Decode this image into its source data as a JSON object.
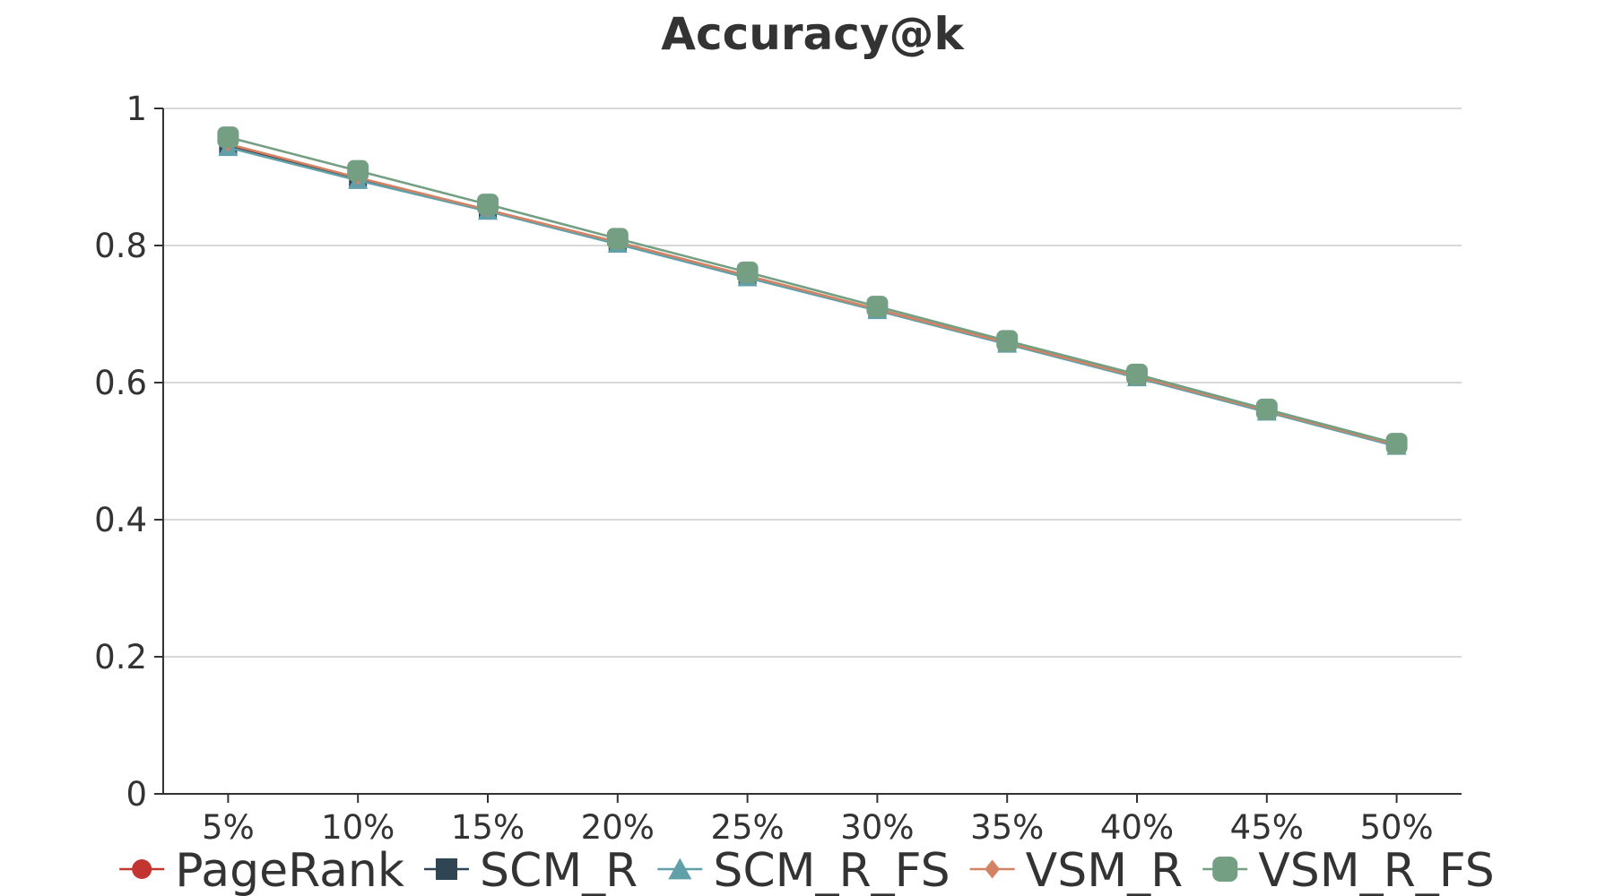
{
  "chart_data": {
    "type": "line",
    "title": "Accuracy@k",
    "xlabel": "",
    "ylabel": "",
    "x": [
      "5%",
      "10%",
      "15%",
      "20%",
      "25%",
      "30%",
      "35%",
      "40%",
      "45%",
      "50%"
    ],
    "ylim": [
      0,
      1
    ],
    "yticks": [
      0,
      0.2,
      0.4,
      0.6,
      0.8,
      1
    ],
    "ytick_labels": [
      "0",
      "0.2",
      "0.4",
      "0.6",
      "0.8",
      "1"
    ],
    "grid": true,
    "legend_position": "bottom",
    "series": [
      {
        "name": "PageRank",
        "marker": "circle",
        "color": "#c23531",
        "values": [
          0.945,
          0.897,
          0.852,
          0.804,
          0.755,
          0.707,
          0.658,
          0.609,
          0.559,
          0.509
        ]
      },
      {
        "name": "SCM_R",
        "marker": "square",
        "color": "#2f4554",
        "values": [
          0.944,
          0.896,
          0.851,
          0.803,
          0.754,
          0.706,
          0.657,
          0.608,
          0.558,
          0.508
        ]
      },
      {
        "name": "SCM_R_FS",
        "marker": "triangle",
        "color": "#61a0a8",
        "values": [
          0.943,
          0.895,
          0.85,
          0.802,
          0.753,
          0.705,
          0.656,
          0.607,
          0.557,
          0.507
        ]
      },
      {
        "name": "VSM_R",
        "marker": "diamond",
        "color": "#d48265",
        "values": [
          0.948,
          0.899,
          0.852,
          0.805,
          0.756,
          0.707,
          0.658,
          0.609,
          0.559,
          0.509
        ]
      },
      {
        "name": "VSM_R_FS",
        "marker": "rounded-square",
        "color": "#749f83",
        "values": [
          0.958,
          0.909,
          0.86,
          0.81,
          0.761,
          0.711,
          0.661,
          0.612,
          0.561,
          0.511
        ]
      }
    ]
  }
}
